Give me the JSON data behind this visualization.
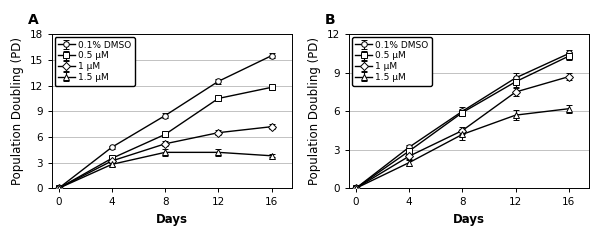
{
  "days": [
    0,
    4,
    8,
    12,
    16
  ],
  "panel_A": {
    "title": "A",
    "ylabel": "Population Doubling (PD)",
    "xlabel": "Days",
    "ylim": [
      0,
      18
    ],
    "yticks": [
      0,
      3,
      6,
      9,
      12,
      15,
      18
    ],
    "xlim": [
      -0.5,
      17.5
    ],
    "series": {
      "0.1% DMSO": {
        "y": [
          0,
          4.8,
          8.5,
          12.5,
          15.5
        ],
        "yerr": [
          0,
          0.2,
          0.3,
          0.3,
          0.25
        ],
        "marker": "o",
        "linestyle": "-"
      },
      "0.5 μM": {
        "y": [
          0,
          3.5,
          6.3,
          10.5,
          11.8
        ],
        "yerr": [
          0,
          0.2,
          0.25,
          0.3,
          0.3
        ],
        "marker": "s",
        "linestyle": "-"
      },
      "1 μM": {
        "y": [
          0,
          3.2,
          5.2,
          6.5,
          7.2
        ],
        "yerr": [
          0,
          0.2,
          0.3,
          0.3,
          0.3
        ],
        "marker": "D",
        "linestyle": "-"
      },
      "1.5 μM": {
        "y": [
          0,
          2.8,
          4.2,
          4.2,
          3.8
        ],
        "yerr": [
          0,
          0.2,
          0.4,
          0.4,
          0.2
        ],
        "marker": "^",
        "linestyle": "-"
      }
    }
  },
  "panel_B": {
    "title": "B",
    "ylabel": "Population Doubling (PD)",
    "xlabel": "Days",
    "ylim": [
      0,
      12
    ],
    "yticks": [
      0,
      3,
      6,
      9,
      12
    ],
    "xlim": [
      -0.5,
      17.5
    ],
    "series": {
      "0.1% DMSO": {
        "y": [
          0,
          3.2,
          6.0,
          8.6,
          10.5
        ],
        "yerr": [
          0,
          0.2,
          0.3,
          0.4,
          0.3
        ],
        "marker": "o",
        "linestyle": "-"
      },
      "0.5 μM": {
        "y": [
          0,
          2.9,
          5.9,
          8.3,
          10.3
        ],
        "yerr": [
          0,
          0.3,
          0.3,
          0.4,
          0.3
        ],
        "marker": "s",
        "linestyle": "-"
      },
      "1 μM": {
        "y": [
          0,
          2.5,
          4.5,
          7.5,
          8.7
        ],
        "yerr": [
          0,
          0.3,
          0.3,
          0.3,
          0.3
        ],
        "marker": "D",
        "linestyle": "-"
      },
      "1.5 μM": {
        "y": [
          0,
          2.0,
          4.2,
          5.7,
          6.2
        ],
        "yerr": [
          0,
          0.3,
          0.4,
          0.4,
          0.3
        ],
        "marker": "^",
        "linestyle": "-"
      }
    }
  },
  "color": "black",
  "markersize": 4,
  "linewidth": 1.0,
  "capsize": 2,
  "legend_fontsize": 6.5,
  "tick_fontsize": 7.5,
  "label_fontsize": 8.5,
  "title_fontsize": 10,
  "elinewidth": 0.8
}
